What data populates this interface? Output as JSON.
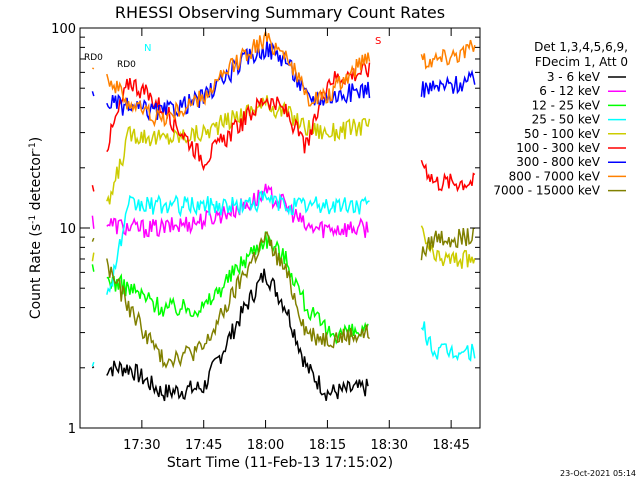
{
  "chart_data": {
    "type": "line",
    "title": "RHESSI Observing Summary Count Rates",
    "xlabel": "Start Time (11-Feb-13 17:15:02)",
    "ylabel_main": "Count Rate (s",
    "ylabel_sup": "-1",
    "ylabel_mid": " detector",
    "ylabel_end": ")",
    "y_scale": "log",
    "ylim": [
      1,
      100
    ],
    "xlim_minutes": [
      0,
      97
    ],
    "x_ticks": [
      {
        "label": "17:30",
        "minute": 15
      },
      {
        "label": "17:45",
        "minute": 30
      },
      {
        "label": "18:00",
        "minute": 45
      },
      {
        "label": "18:15",
        "minute": 60
      },
      {
        "label": "18:30",
        "minute": 75
      },
      {
        "label": "18:45",
        "minute": 90
      }
    ],
    "y_ticks": [
      {
        "label": "1",
        "value": 1
      },
      {
        "label": "10",
        "value": 10
      },
      {
        "label": "100",
        "value": 100
      }
    ],
    "legend_header": [
      "Det 1,3,4,5,6,9,",
      "FDecim 1, Att 0"
    ],
    "legend_position": "right",
    "series": [
      {
        "name": "3 - 6 keV",
        "color": "#000000",
        "values": [
          [
            3,
            2
          ],
          [
            12,
            2
          ],
          [
            20,
            1.5
          ],
          [
            30,
            1.6
          ],
          [
            40,
            4
          ],
          [
            45,
            6
          ],
          [
            50,
            4
          ],
          [
            55,
            2
          ],
          [
            60,
            1.5
          ],
          [
            70,
            1.6
          ]
        ]
      },
      {
        "name": "6 - 12 keV",
        "color": "#ff00ff",
        "values": [
          [
            3,
            11
          ],
          [
            12,
            10
          ],
          [
            20,
            10
          ],
          [
            30,
            11
          ],
          [
            40,
            13
          ],
          [
            45,
            15
          ],
          [
            50,
            13
          ],
          [
            55,
            10
          ],
          [
            60,
            10
          ],
          [
            70,
            10
          ]
        ]
      },
      {
        "name": "12 - 25 keV",
        "color": "#00ff00",
        "values": [
          [
            3,
            6
          ],
          [
            12,
            5
          ],
          [
            20,
            4
          ],
          [
            30,
            4
          ],
          [
            40,
            7
          ],
          [
            45,
            9
          ],
          [
            50,
            7
          ],
          [
            55,
            4
          ],
          [
            60,
            3
          ],
          [
            70,
            3
          ]
        ]
      },
      {
        "name": "25 - 50 keV",
        "color": "#00ffff",
        "values": [
          [
            3,
            2.2
          ],
          [
            12,
            13
          ],
          [
            20,
            13
          ],
          [
            30,
            13
          ],
          [
            40,
            13
          ],
          [
            45,
            14
          ],
          [
            50,
            13
          ],
          [
            55,
            13
          ],
          [
            60,
            13
          ],
          [
            70,
            13
          ],
          [
            86,
            2.4
          ],
          [
            96,
            2.4
          ]
        ]
      },
      {
        "name": "50 - 100 keV",
        "color": "#cccc00",
        "values": [
          [
            3,
            7
          ],
          [
            12,
            30
          ],
          [
            20,
            28
          ],
          [
            30,
            30
          ],
          [
            40,
            38
          ],
          [
            45,
            42
          ],
          [
            50,
            38
          ],
          [
            55,
            32
          ],
          [
            60,
            30
          ],
          [
            70,
            33
          ],
          [
            86,
            7
          ],
          [
            96,
            7
          ]
        ]
      },
      {
        "name": "100 - 300 keV",
        "color": "#ff0000",
        "values": [
          [
            3,
            16
          ],
          [
            12,
            55
          ],
          [
            20,
            40
          ],
          [
            30,
            22
          ],
          [
            40,
            35
          ],
          [
            45,
            45
          ],
          [
            50,
            38
          ],
          [
            55,
            25
          ],
          [
            60,
            55
          ],
          [
            70,
            62
          ],
          [
            86,
            17
          ],
          [
            96,
            17
          ]
        ]
      },
      {
        "name": "300 - 800 keV",
        "color": "#0000ff",
        "values": [
          [
            3,
            45
          ],
          [
            12,
            40
          ],
          [
            20,
            38
          ],
          [
            30,
            45
          ],
          [
            40,
            70
          ],
          [
            45,
            80
          ],
          [
            50,
            70
          ],
          [
            55,
            45
          ],
          [
            60,
            45
          ],
          [
            70,
            50
          ],
          [
            86,
            50
          ],
          [
            96,
            55
          ]
        ]
      },
      {
        "name": "800 - 7000 keV",
        "color": "#ff8000",
        "values": [
          [
            3,
            70
          ],
          [
            12,
            42
          ],
          [
            20,
            35
          ],
          [
            30,
            45
          ],
          [
            40,
            75
          ],
          [
            45,
            88
          ],
          [
            50,
            75
          ],
          [
            55,
            45
          ],
          [
            60,
            45
          ],
          [
            70,
            75
          ],
          [
            86,
            70
          ],
          [
            96,
            80
          ]
        ]
      },
      {
        "name": "7000 - 15000 keV",
        "color": "#808000",
        "values": [
          [
            3,
            9
          ],
          [
            12,
            4
          ],
          [
            20,
            2.2
          ],
          [
            30,
            2.5
          ],
          [
            40,
            6
          ],
          [
            45,
            9
          ],
          [
            50,
            6
          ],
          [
            55,
            3
          ],
          [
            60,
            2.8
          ],
          [
            70,
            3
          ],
          [
            86,
            9
          ],
          [
            96,
            9
          ]
        ]
      }
    ],
    "annotations": [
      "RD0",
      "N",
      "RD0",
      "S"
    ],
    "timestamp": "23-Oct-2021 05:14"
  }
}
